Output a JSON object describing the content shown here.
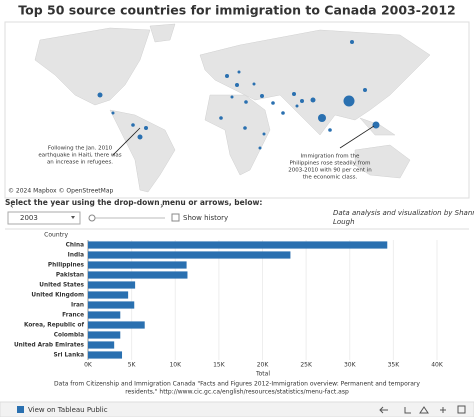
{
  "header": {
    "title": "Top 50 source countries for immigration to Canada 2003-2012"
  },
  "map": {
    "attribution": "© 2024 Mapbox © OpenStreetMap",
    "haiti_note": [
      "Following the Jan. 2010",
      "earthquake in Haiti, there was",
      "an increase in refugees."
    ],
    "philippines_note": [
      "Immigration from the",
      "Philippines rose steadily from",
      "2003-2010 with 90 per cent in",
      "the economic class."
    ]
  },
  "controls": {
    "instruction": "Select the year using the drop-down menu or arrows, below:",
    "year": "2003",
    "show_history": "Show history",
    "credit": [
      "Data analysis and visualization by Shannon",
      "Lough"
    ]
  },
  "chart_data": {
    "type": "hbar",
    "category_header": "Country",
    "x_label": "Total",
    "color": "#2a70b0",
    "grid": true,
    "categories": [
      "China",
      "India",
      "Philippines",
      "Pakistan",
      "United States",
      "United Kingdom",
      "Iran",
      "France",
      "Korea, Republic of",
      "Colombia",
      "United Arab Emirates",
      "Sri Lanka"
    ],
    "values": [
      34300,
      23200,
      11300,
      11400,
      5400,
      4600,
      5300,
      3700,
      6500,
      3700,
      3000,
      3900
    ],
    "xlim": [
      0,
      40000
    ],
    "xticks": [
      {
        "value": 0,
        "label": "0K"
      },
      {
        "value": 5000,
        "label": "5K"
      },
      {
        "value": 10000,
        "label": "10K"
      },
      {
        "value": 15000,
        "label": "15K"
      },
      {
        "value": 20000,
        "label": "20K"
      },
      {
        "value": 25000,
        "label": "25K"
      },
      {
        "value": 30000,
        "label": "30K"
      },
      {
        "value": 35000,
        "label": "35K"
      },
      {
        "value": 40000,
        "label": "40K"
      }
    ]
  },
  "footer": {
    "source": [
      "Data from Citizenship and Immigration Canada \"Facts and Figures 2012-Immigration overview: Permanent and temporary",
      "residents,\" http://www.cic.gc.ca/english/resources/statistics/menu-fact.asp"
    ],
    "link": "View on Tableau Public"
  }
}
